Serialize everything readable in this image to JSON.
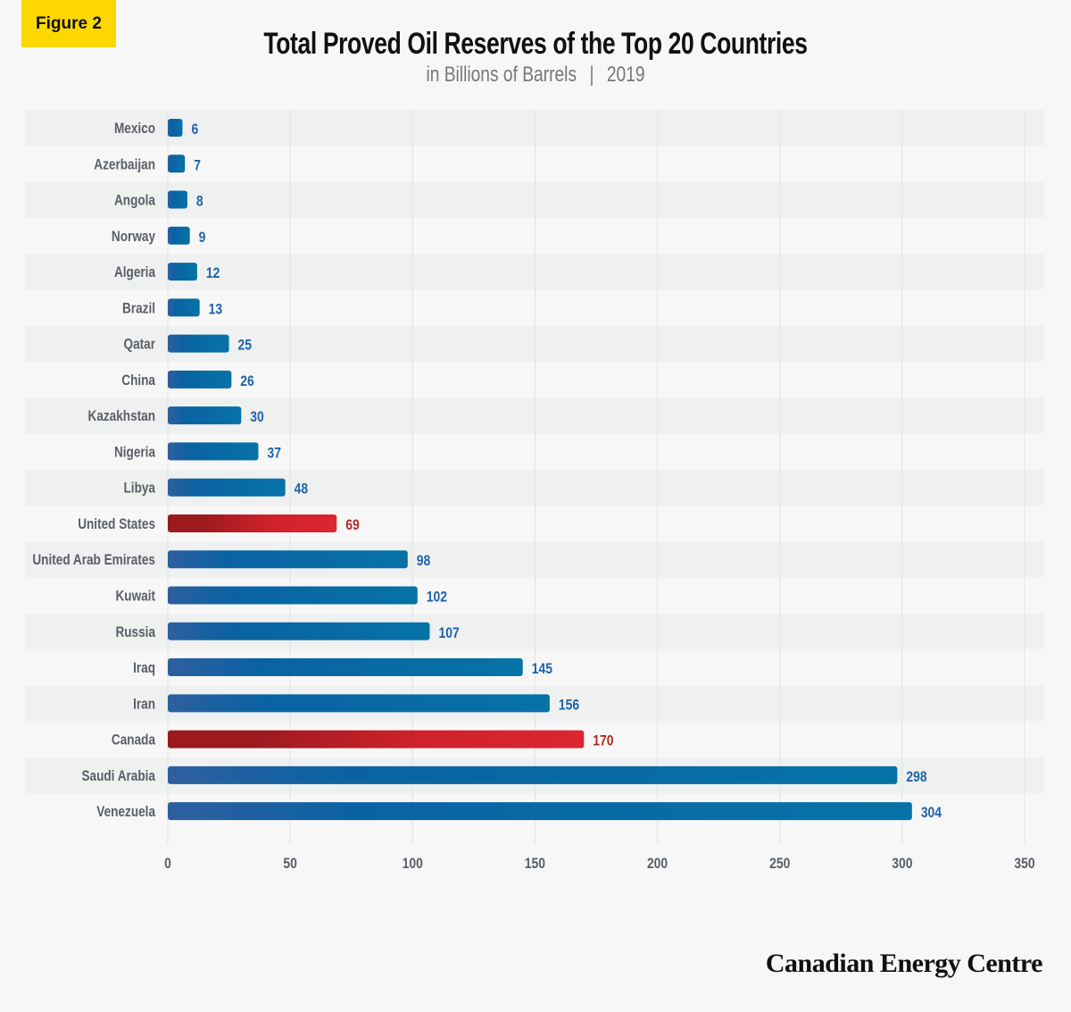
{
  "badge": "Figure 2",
  "brand": "Canadian Energy Centre",
  "chart_data": {
    "type": "bar",
    "orientation": "horizontal",
    "title": "Total Proved Oil Reserves of the Top 20 Countries",
    "subtitle_unit": "in Billions of Barrels",
    "subtitle_year": "2019",
    "categories": [
      "Mexico",
      "Azerbaijan",
      "Angola",
      "Norway",
      "Algeria",
      "Brazil",
      "Qatar",
      "China",
      "Kazakhstan",
      "Nigeria",
      "Libya",
      "United States",
      "United Arab Emirates",
      "Kuwait",
      "Russia",
      "Iraq",
      "Iran",
      "Canada",
      "Saudi Arabia",
      "Venezuela"
    ],
    "values": [
      6,
      7,
      8,
      9,
      12,
      13,
      25,
      26,
      30,
      37,
      48,
      69,
      98,
      102,
      107,
      145,
      156,
      170,
      298,
      304
    ],
    "highlight": [
      "United States",
      "Canada"
    ],
    "xlim": [
      0,
      350
    ],
    "xticks": [
      0,
      50,
      100,
      150,
      200,
      250,
      300,
      350
    ],
    "grid": "vertical",
    "colors": {
      "default": "#0a6aa5",
      "highlight": "#d7232e",
      "label_default": "#1f63a8",
      "label_highlight": "#b22a22",
      "category_label": "#5a5f66"
    }
  }
}
